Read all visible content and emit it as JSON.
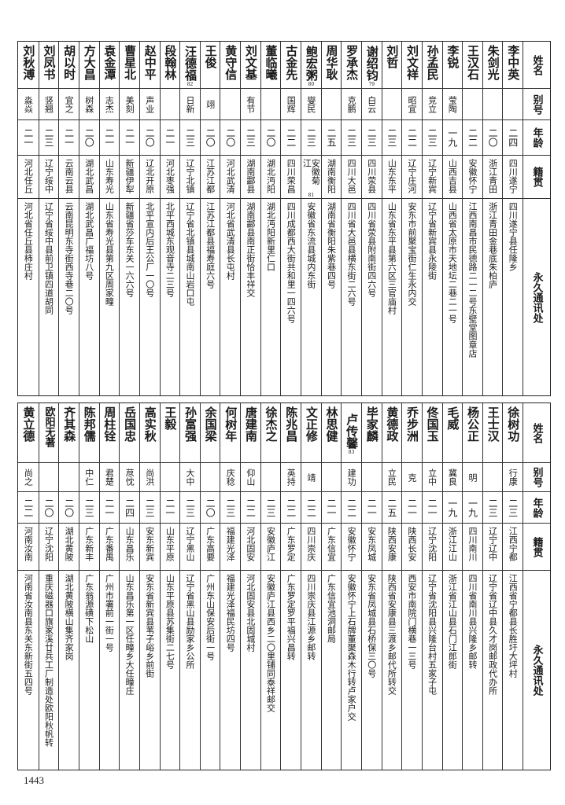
{
  "headers": [
    "姓名",
    "别号",
    "年龄",
    "籍贯",
    "永久通讯处"
  ],
  "top_table": [
    {
      "name": "李中英",
      "alias": "",
      "age": "二四",
      "native": "四川遂宁",
      "address": "四川遂宁县任隆乡"
    },
    {
      "name": "朱剑光",
      "alias": "",
      "age": "二〇",
      "native": "浙江青田",
      "address": "浙江青田金巷底朱柏庐"
    },
    {
      "name": "王汉石",
      "alias": "",
      "age": "二二",
      "native": "安徽怀宁",
      "address": "江西南昌市民德路二一二号东壁堂图章店"
    },
    {
      "name": "李锐",
      "alias": "莹陶",
      "age": "一九",
      "native": "山西吉县",
      "address": "山西省太原市天地坛二巷二一号"
    },
    {
      "name": "孙孟民",
      "alias": "竞立",
      "age": "二三",
      "native": "辽宁新宾",
      "address": "辽宁省新宾县永陵街"
    },
    {
      "name": "刘文祥",
      "alias": "昭宜",
      "age": "二二",
      "native": "辽宁庄河",
      "address": "安东市前聚宝街仁生永内交"
    },
    {
      "name": "刘哲",
      "alias": "",
      "age": "二三",
      "native": "山东东平",
      "address": "山东省东平县第六区三官庙村"
    },
    {
      "name": "谢绍钧",
      "name_note": "79",
      "alias": "白云",
      "age": "二三",
      "native": "四川荥县",
      "address": "四川省荥县附南街四六号"
    },
    {
      "name": "罗承杰",
      "alias": "克鹏",
      "age": "二三",
      "native": "四川大邑",
      "address": "四川省大邑县横东街二六号"
    },
    {
      "name": "周华耿",
      "alias": "",
      "age": "二五",
      "native": "湖南衡阳",
      "address": "湖南省衡阳朱紫巷四号"
    },
    {
      "name": "鲍宏粥",
      "name_note": "80",
      "alias": "燮民",
      "age": "二三",
      "native": "安徽菊江",
      "native_note": "81",
      "address": "安徽省东流县城内东街"
    },
    {
      "name": "古金先",
      "alias": "国辉",
      "age": "二二",
      "native": "四川荣昌",
      "address": "四川成都西大街共和里一四六号"
    },
    {
      "name": "董临曦",
      "alias": "",
      "age": "二〇",
      "native": "湖北沔阳",
      "address": "湖北沔阳新里仁口"
    },
    {
      "name": "刘文基",
      "alias": "有节",
      "age": "二三",
      "native": "湖南酃县",
      "address": "湖南酃县南正街恰丰祥交"
    },
    {
      "name": "黄守信",
      "alias": "",
      "age": "二〇",
      "native": "河北武清",
      "address": "河北省武清县长屯村"
    },
    {
      "name": "王俊",
      "alias": "翊",
      "age": "二〇",
      "native": "江苏江都",
      "address": "江苏江都县福寿庭六号"
    },
    {
      "name": "汪德福",
      "name_note": "82",
      "alias": "日新",
      "age": "二三",
      "native": "辽宁北镇",
      "address": "辽宁省北镇县城南山岩口屯"
    },
    {
      "name": "段翰林",
      "alias": "",
      "age": "二一",
      "native": "河北枣强",
      "address": "北平西城东观音寺二三号"
    },
    {
      "name": "赵中平",
      "alias": "声业",
      "age": "二〇",
      "native": "辽北开原",
      "address": "北平宣内后王公厂一〇号"
    },
    {
      "name": "曹星北",
      "alias": "美刻",
      "age": "二一",
      "native": "新疆伊犁",
      "address": "新疆省莎车东关一六六号"
    },
    {
      "name": "袁金潭",
      "alias": "志杰",
      "age": "二一",
      "native": "山东寿光",
      "address": "山东省寿光县第九区周家疃"
    },
    {
      "name": "方大昌",
      "alias": "树森",
      "age": "二〇",
      "native": "湖北武昌",
      "address": "湖北武昌广福坊八号"
    },
    {
      "name": "胡以时",
      "alias": "宜之",
      "age": "二一",
      "native": "云南云县",
      "address": "云南昆明东寺街西寺巷二〇号"
    },
    {
      "name": "刘凤书",
      "alias": "竖翘",
      "age": "二三",
      "native": "辽宁绥中",
      "address": "辽宁省绥中县前卫镇四道胡同"
    },
    {
      "name": "刘秋溥",
      "alias": "淼焱",
      "age": "二一",
      "native": "河北任丘",
      "address": "河北省任丘县柿庄村"
    }
  ],
  "bottom_table": [
    {
      "name": "徐树功",
      "alias": "行康",
      "age": "二三",
      "native": "江西宁都",
      "address": "江西省宁都县长胜圩大坪村"
    },
    {
      "name": "王士汉",
      "alias": "",
      "age": "二三",
      "native": "辽宁辽中",
      "address": "辽宁省辽中县久才岗邮政代办所"
    },
    {
      "name": "杨公正",
      "alias": "明",
      "age": "一九",
      "native": "四川南川",
      "address": "四川省南川县兴隆乡邮转"
    },
    {
      "name": "毛威",
      "alias": "冀良",
      "age": "一九",
      "native": "浙江江山",
      "address": "浙江省江山县石门江郎街"
    },
    {
      "name": "佟国玉",
      "alias": "立中",
      "age": "二一",
      "native": "辽宁沈阳",
      "address": "辽宁省沈阳县兴隆台村五家子屯"
    },
    {
      "name": "乔步洲",
      "alias": "克",
      "age": "二一",
      "native": "陕西长安",
      "address": "西安市南院门横巷一三号"
    },
    {
      "name": "黄德政",
      "alias": "立民",
      "age": "二五",
      "native": "陕西安康",
      "address": "陕西省安康县三渡乡邮代所转交"
    },
    {
      "name": "毕家麟",
      "alias": "",
      "age": "二一",
      "native": "安东凤城",
      "address": "安东省凤城县石桥保三〇号"
    },
    {
      "name": "卢传馨",
      "name_note": "83",
      "alias": "建功",
      "age": "二二",
      "native": "安徽怀宁",
      "address": "安徽怀宁上石牌董聚森木行转卢家户交"
    },
    {
      "name": "林思健",
      "alias": "",
      "age": "二一",
      "native": "广东信宜",
      "address": "广东信宜池洞邮局"
    },
    {
      "name": "文正修",
      "alias": "靖",
      "age": "二二",
      "native": "四川崇庆",
      "address": "四川崇庆县江源乡邮转"
    },
    {
      "name": "陈兆昌",
      "alias": "英持",
      "age": "二二",
      "native": "广东罗定",
      "address": "广东罗定罗平福兴昌转"
    },
    {
      "name": "徐杰之",
      "alias": "",
      "age": "二三",
      "native": "安徽庐江",
      "address": "安徽庐江县西乡二〇里铺同泰祥邮交"
    },
    {
      "name": "唐建南",
      "alias": "仰山",
      "age": "二二",
      "native": "河北固安",
      "address": "河北固安县北固城村"
    },
    {
      "name": "何树年",
      "alias": "庆稔",
      "age": "二三",
      "native": "福建光泽",
      "address": "福建光泽福民坊四号"
    },
    {
      "name": "余国梁",
      "alias": "",
      "age": "二〇",
      "native": "广东高要",
      "address": "广州东山保安后街一号"
    },
    {
      "name": "孙富强",
      "alias": "大中",
      "age": "二三",
      "native": "辽宁黑山",
      "address": "辽宁省黑山县励家乡公所"
    },
    {
      "name": "王毅",
      "alias": "",
      "age": "二一",
      "native": "山东平原",
      "address": "山东平原县苏集街二七号"
    },
    {
      "name": "高实秋",
      "alias": "尚洪",
      "age": "二三",
      "native": "安东新宾",
      "address": "安东省新宾县苇子峪乡前街"
    },
    {
      "name": "岳国忠",
      "alias": "荩忱",
      "age": "二四",
      "native": "山东昌乐",
      "address": "山东昌乐第一区任疃乡大任疃庄"
    },
    {
      "name": "周柱铨",
      "alias": "君楚",
      "age": "二一",
      "native": "广东番禺",
      "address": "广州市署前一街一号"
    },
    {
      "name": "陈邦儒",
      "alias": "中仁",
      "age": "二三",
      "native": "广东新丰",
      "address": "广东翁源磺下松山"
    },
    {
      "name": "齐其森",
      "alias": "",
      "age": "二〇",
      "native": "湖北黄陂",
      "address": "湖北黄陂横山集齐家岗"
    },
    {
      "name": "欧阳无著",
      "alias": "",
      "age": "二〇",
      "native": "辽宁沈阳",
      "address": "重庆磁器口旗家溪廿兵工厂制造处欧阳秋帆转"
    },
    {
      "name": "黄立德",
      "alias": "尚之",
      "age": "二二",
      "native": "河南汝南",
      "address": "河南省汝南县东关东新街五四号"
    }
  ],
  "page_number": "1443"
}
